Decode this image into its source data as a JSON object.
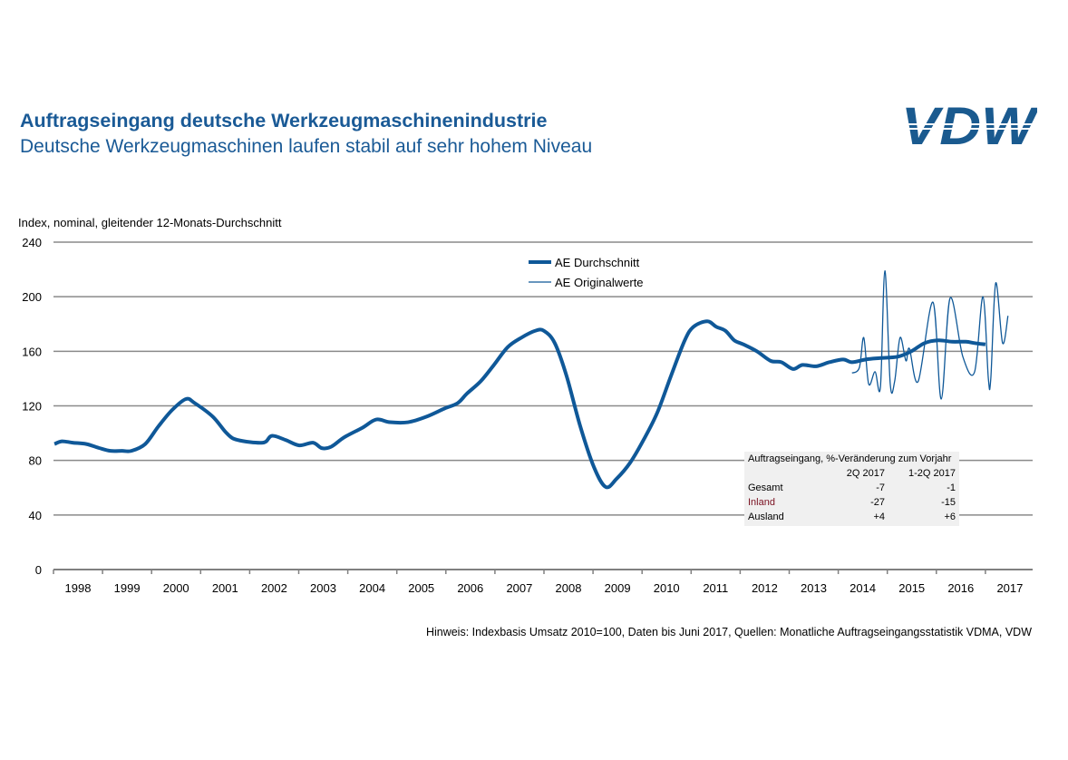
{
  "header": {
    "title": "Auftragseingang deutsche Werkzeugmaschinenindustrie",
    "subtitle": "Deutsche Werkzeugmaschinen laufen stabil auf sehr hohem Niveau",
    "logo_text": "VDW"
  },
  "colors": {
    "accent": "#1a5a96",
    "series": "#0f5898",
    "grid": "#8a8a8a"
  },
  "note": "Hinweis: Indexbasis Umsatz 2010=100, Daten bis Juni 2017, Quellen: Monatliche Auftragseingangsstatistik VDMA, VDW",
  "table": {
    "title": "Auftragseingang, %-Veränderung zum Vorjahr",
    "columns": [
      "2Q 2017",
      "1-2Q 2017"
    ],
    "rows": [
      {
        "label": "Gesamt",
        "v1": "-7",
        "v2": "-1",
        "color": "#000000"
      },
      {
        "label": "Inland",
        "v1": "-27",
        "v2": "-15",
        "color": "#7a1020"
      },
      {
        "label": "Ausland",
        "v1": "+4",
        "v2": "+6",
        "color": "#000000"
      }
    ]
  },
  "chart_data": {
    "type": "line",
    "ylabel": "Index, nominal, gleitender 12-Monats-Durchschnitt",
    "ylim": [
      0,
      240
    ],
    "yticks": [
      0,
      40,
      80,
      120,
      160,
      200,
      240
    ],
    "xlim": [
      1998,
      2018
    ],
    "xticklabels": [
      "1998",
      "1999",
      "2000",
      "2001",
      "2002",
      "2003",
      "2004",
      "2005",
      "2006",
      "2007",
      "2008",
      "2009",
      "2010",
      "2011",
      "2012",
      "2013",
      "2014",
      "2015",
      "2016",
      "2017"
    ],
    "grid": true,
    "legend": "top-center",
    "series": [
      {
        "name": "AE Durchschnitt",
        "x": [
          1998.02,
          1998.17,
          1998.39,
          1998.67,
          1998.94,
          1999.16,
          1999.4,
          1999.59,
          1999.87,
          2000.14,
          2000.42,
          2000.7,
          2000.88,
          2001.25,
          2001.53,
          2001.75,
          2002.27,
          2002.45,
          2002.73,
          2003.01,
          2003.29,
          2003.47,
          2003.66,
          2003.93,
          2004.3,
          2004.58,
          2004.86,
          2005.23,
          2005.6,
          2005.97,
          2006.24,
          2006.43,
          2006.71,
          2006.98,
          2007.26,
          2007.54,
          2007.82,
          2008.0,
          2008.22,
          2008.46,
          2008.74,
          2009.02,
          2009.26,
          2009.48,
          2009.76,
          2010.03,
          2010.31,
          2010.59,
          2010.87,
          2011.05,
          2011.33,
          2011.51,
          2011.7,
          2011.88,
          2012.07,
          2012.34,
          2012.62,
          2012.84,
          2013.08,
          2013.27,
          2013.55,
          2013.82,
          2014.1,
          2014.28,
          2014.56,
          2014.84,
          2015.21,
          2015.49,
          2015.76,
          2016.04,
          2016.32,
          2016.6,
          2016.78,
          2017.0
        ],
        "y": [
          92,
          94,
          93,
          92,
          89,
          87,
          87,
          87,
          92,
          105,
          117,
          125,
          122,
          112,
          100,
          95,
          93,
          98,
          95,
          91,
          93,
          89,
          90,
          97,
          104,
          110,
          108,
          108,
          112,
          118,
          122,
          129,
          138,
          150,
          163,
          170,
          175,
          175,
          166,
          142,
          105,
          75,
          60.5,
          66.5,
          78.5,
          95,
          115,
          142,
          168,
          178,
          182,
          178,
          175,
          168,
          165,
          160,
          153,
          152,
          147,
          150,
          149,
          152,
          154,
          152,
          154,
          155,
          156,
          160,
          166,
          168,
          167,
          167,
          166,
          165
        ]
      },
      {
        "name": "AE Originalwerte",
        "x": [
          2014.28,
          2014.43,
          2014.52,
          2014.62,
          2014.75,
          2014.86,
          2014.95,
          2015.06,
          2015.15,
          2015.26,
          2015.38,
          2015.45,
          2015.63,
          2015.93,
          2016.1,
          2016.28,
          2016.54,
          2016.78,
          2016.95,
          2017.06,
          2017.11,
          2017.21,
          2017.35,
          2017.46
        ],
        "y": [
          144,
          148,
          170,
          136,
          145,
          134,
          219,
          136,
          138,
          170,
          153,
          162,
          138,
          196,
          125,
          199,
          156,
          145,
          200,
          140,
          140,
          210,
          166,
          186
        ]
      }
    ]
  }
}
